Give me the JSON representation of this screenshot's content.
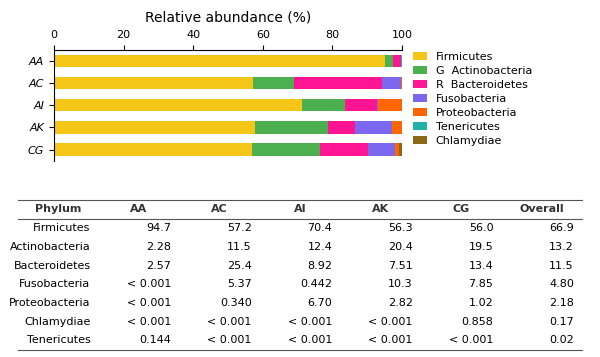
{
  "chart_data": [
    {
      "type": "bar",
      "orientation": "horizontal",
      "stacked": true,
      "title": "Relative abundance (%)",
      "categories": [
        "AA",
        "AC",
        "AI",
        "AK",
        "CG"
      ],
      "series": [
        {
          "name": "Firmicutes",
          "color": "#F5C518",
          "values": [
            94.9878,
            57.3077,
            71.2089,
            57.8427,
            56.7784
          ]
        },
        {
          "name": "G  Actinobacteria",
          "color": "#4CAF50",
          "values": [
            2.2869,
            11.5217,
            12.5425,
            20.959,
            19.7711
          ]
        },
        {
          "name": "R  Bacteroidetes",
          "color": "#FF1493",
          "values": [
            2.5778,
            25.4478,
            9.0225,
            7.7158,
            13.5863
          ]
        },
        {
          "name": "Fusobacteria",
          "color": "#7B68EE",
          "values": [
            0.001,
            5.3801,
            0.4471,
            10.5822,
            7.9591
          ]
        },
        {
          "name": "Proteobacteria",
          "color": "#FF6600",
          "values": [
            0.001,
            0.3406,
            6.777,
            2.8973,
            1.0342
          ]
        },
        {
          "name": "Tenericutes",
          "color": "#20B2AA",
          "values": [
            0.1444,
            0.001,
            0.001,
            0.001,
            0.001
          ]
        },
        {
          "name": "Chlamydiae",
          "color": "#8B6914",
          "values": [
            0.001,
            0.001,
            0.001,
            0.001,
            0.8699
          ]
        }
      ],
      "xlim": [
        0,
        100
      ],
      "xticks": [
        0,
        20,
        40,
        60,
        80,
        100
      ],
      "legend": "upper left"
    },
    {
      "type": "table",
      "columns": [
        "Phylum",
        "AA",
        "AC",
        "AI",
        "AK",
        "CG",
        "Overall"
      ],
      "rows": [
        [
          "Firmicutes",
          "94.7",
          "57.2",
          "70.4",
          "56.3",
          "56.0",
          "66.9"
        ],
        [
          "Actinobacteria",
          "2.28",
          "11.5",
          "12.4",
          "20.4",
          "19.5",
          "13.2"
        ],
        [
          "Bacteroidetes",
          "2.57",
          "25.4",
          "8.92",
          "7.51",
          "13.4",
          "11.5"
        ],
        [
          "Fusobacteria",
          "< 0.001",
          "5.37",
          "0.442",
          "10.3",
          "7.85",
          "4.80"
        ],
        [
          "Proteobacteria",
          "< 0.001",
          "0.340",
          "6.70",
          "2.82",
          "1.02",
          "2.18"
        ],
        [
          "Chlamydiae",
          "< 0.001",
          "< 0.001",
          "< 0.001",
          "< 0.001",
          "0.858",
          "0.17"
        ],
        [
          "Tenericutes",
          "0.144",
          "< 0.001",
          "< 0.001",
          "< 0.001",
          "< 0.001",
          "0.02"
        ]
      ]
    }
  ]
}
